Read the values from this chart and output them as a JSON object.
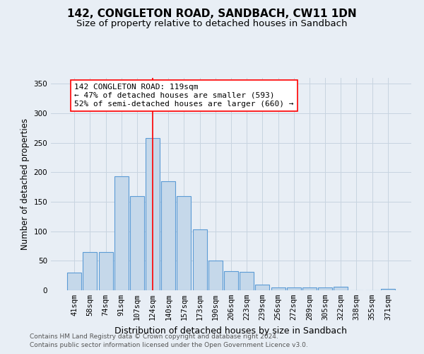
{
  "title": "142, CONGLETON ROAD, SANDBACH, CW11 1DN",
  "subtitle": "Size of property relative to detached houses in Sandbach",
  "xlabel": "Distribution of detached houses by size in Sandbach",
  "ylabel": "Number of detached properties",
  "categories": [
    "41sqm",
    "58sqm",
    "74sqm",
    "91sqm",
    "107sqm",
    "124sqm",
    "140sqm",
    "157sqm",
    "173sqm",
    "190sqm",
    "206sqm",
    "223sqm",
    "239sqm",
    "256sqm",
    "272sqm",
    "289sqm",
    "305sqm",
    "322sqm",
    "338sqm",
    "355sqm",
    "371sqm"
  ],
  "values": [
    30,
    65,
    65,
    193,
    160,
    258,
    185,
    160,
    103,
    50,
    33,
    31,
    10,
    5,
    5,
    5,
    5,
    6,
    0,
    0,
    3
  ],
  "bar_color": "#c5d8ea",
  "bar_edge_color": "#5b9bd5",
  "bar_linewidth": 0.8,
  "vline_x_index": 5.0,
  "vline_color": "red",
  "vline_linewidth": 1.2,
  "annotation_text": "142 CONGLETON ROAD: 119sqm\n← 47% of detached houses are smaller (593)\n52% of semi-detached houses are larger (660) →",
  "annotation_box_color": "white",
  "annotation_edge_color": "red",
  "grid_color": "#c8d4e0",
  "background_color": "#e8eef5",
  "plot_bg_color": "#e8eef5",
  "ylim": [
    0,
    360
  ],
  "yticks": [
    0,
    50,
    100,
    150,
    200,
    250,
    300,
    350
  ],
  "footer_line1": "Contains HM Land Registry data © Crown copyright and database right 2024.",
  "footer_line2": "Contains public sector information licensed under the Open Government Licence v3.0.",
  "title_fontsize": 11,
  "subtitle_fontsize": 9.5,
  "xlabel_fontsize": 9,
  "ylabel_fontsize": 8.5,
  "tick_fontsize": 7.5,
  "annotation_fontsize": 8,
  "footer_fontsize": 6.5
}
